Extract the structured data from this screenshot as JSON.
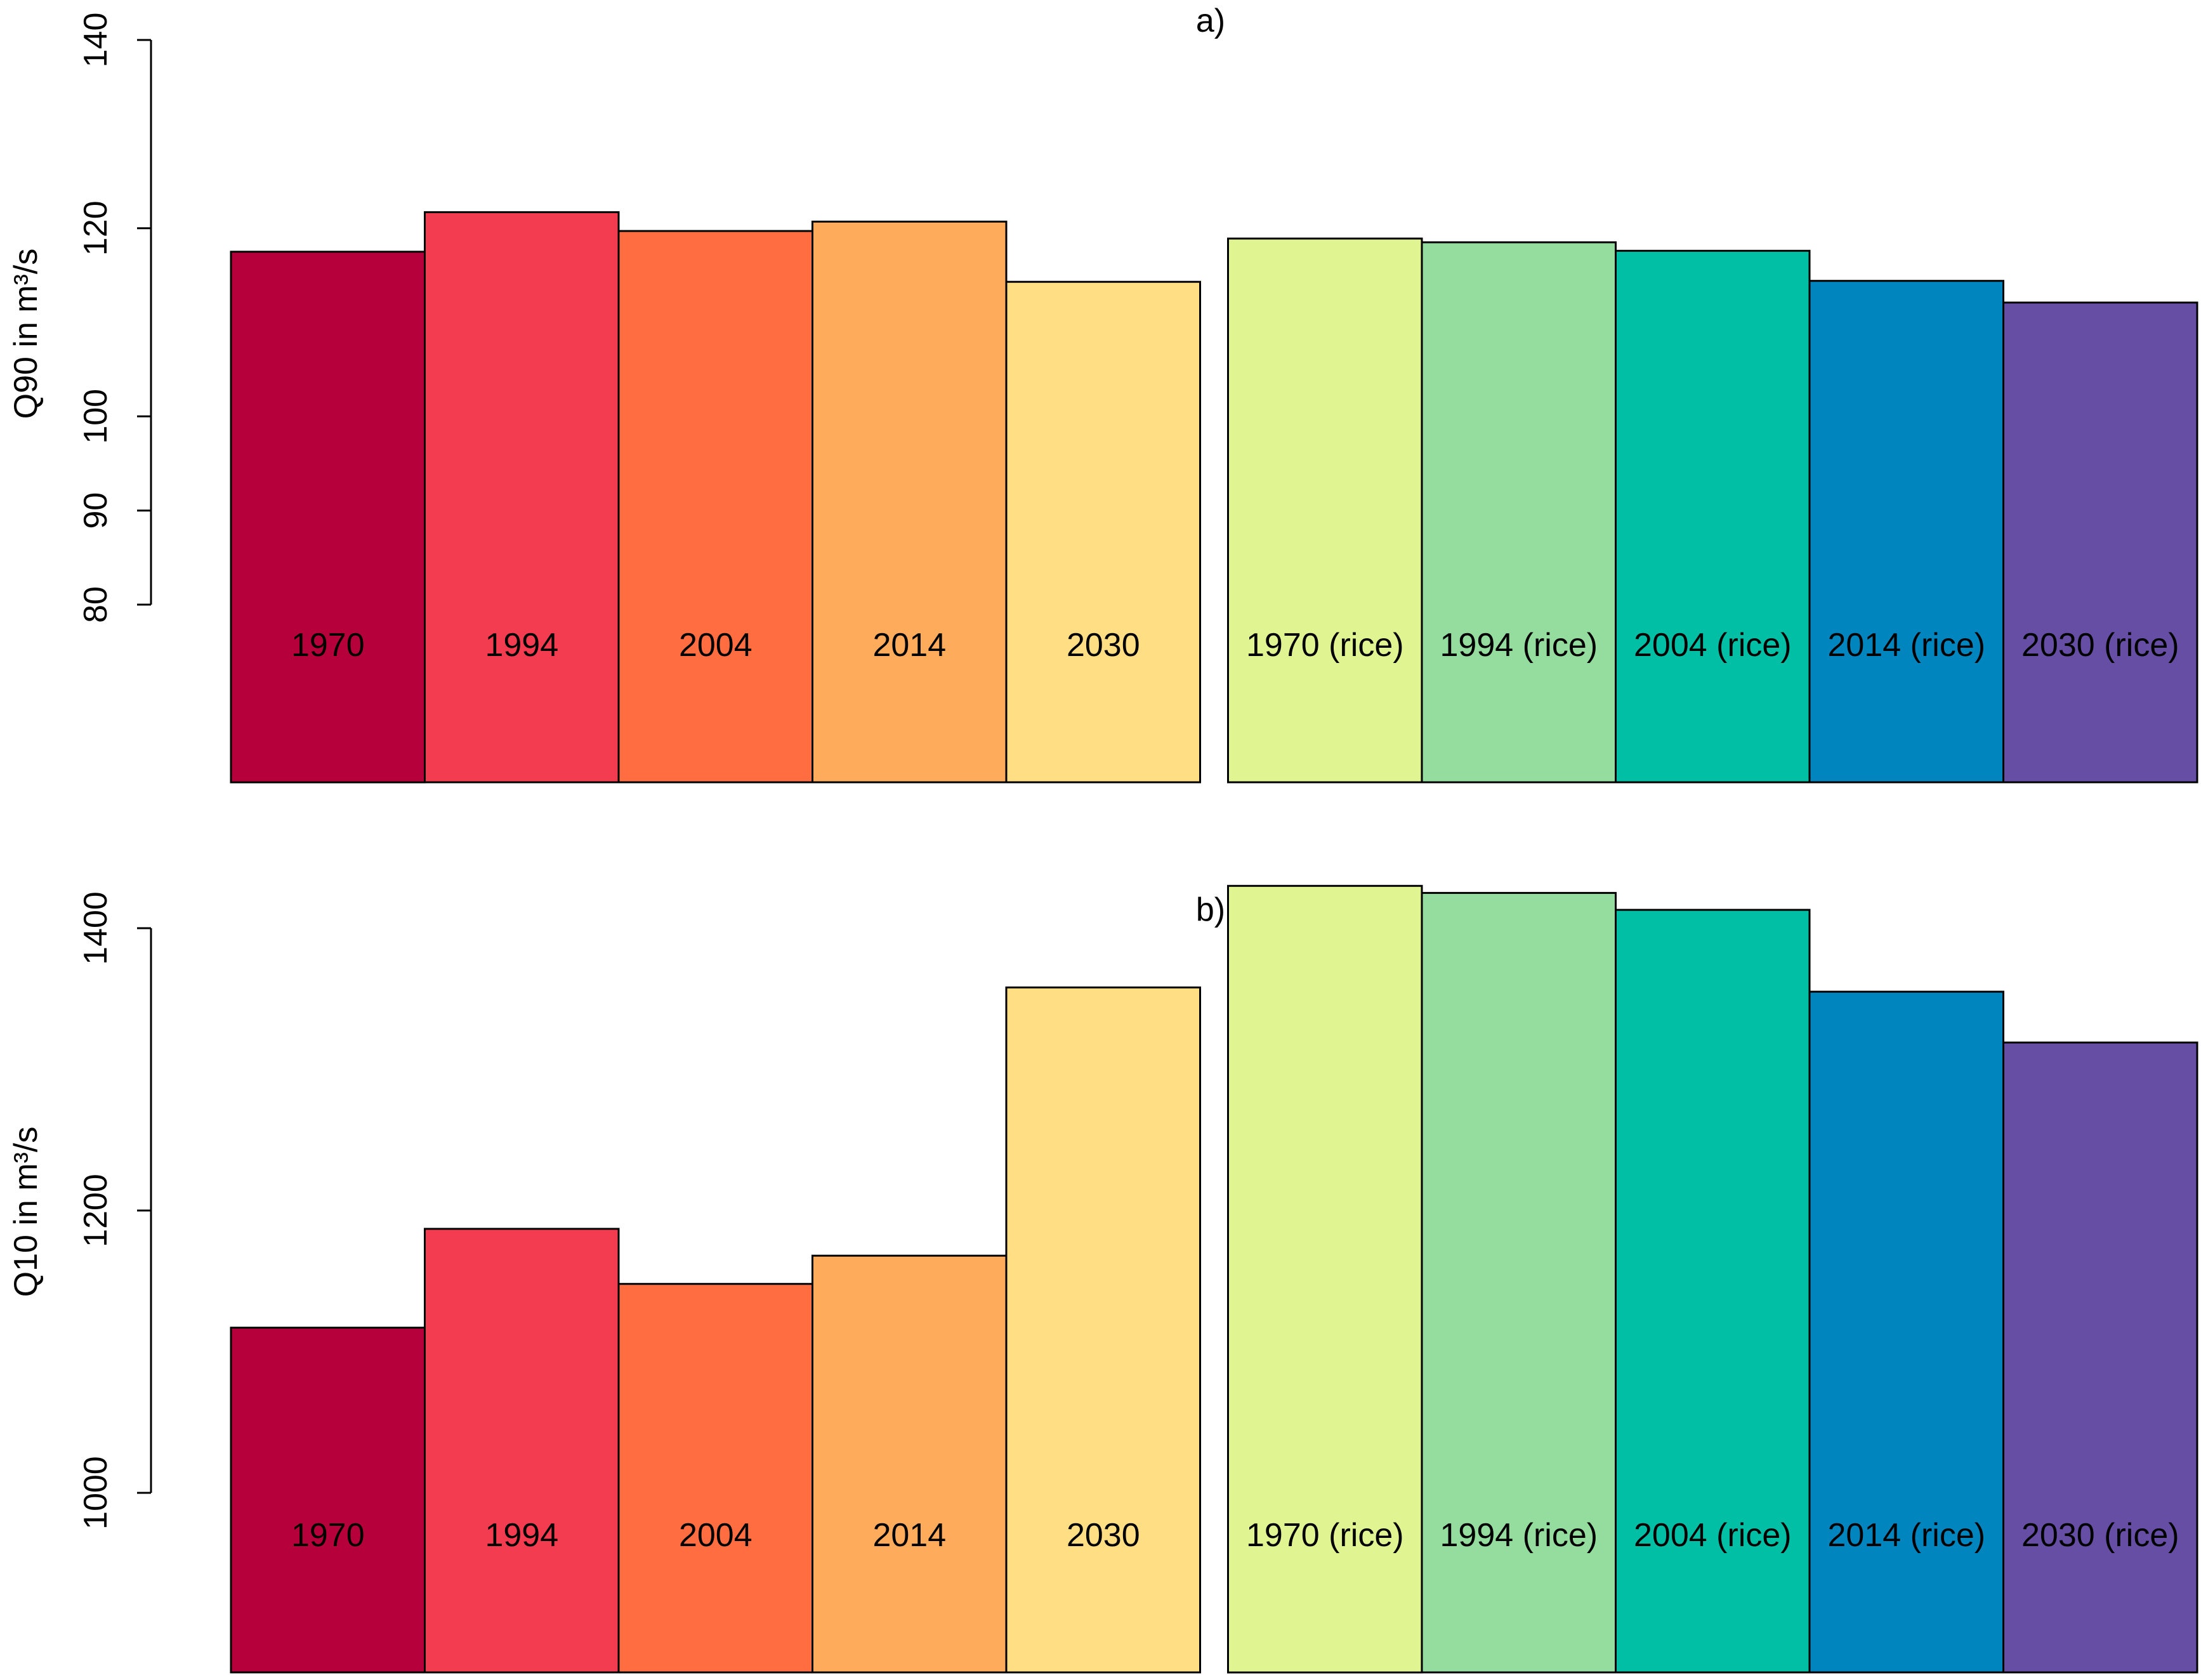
{
  "chart_data": [
    {
      "type": "bar",
      "title": "a)",
      "ylabel": "Q90 in m³/s",
      "xlabel": "",
      "ylim": [
        80,
        140
      ],
      "yticks": [
        80,
        90,
        100,
        120,
        140
      ],
      "grid": false,
      "categories": [
        "1970",
        "1994",
        "2004",
        "2014",
        "2030",
        "1970 (rice)",
        "1994 (rice)",
        "2004 (rice)",
        "2014 (rice)",
        "2030 (rice)"
      ],
      "values": [
        117.5,
        121.7,
        119.7,
        120.7,
        114.3,
        118.9,
        118.5,
        117.6,
        114.4,
        112.1
      ],
      "group_sizes": [
        5,
        5
      ],
      "colors": [
        "#B5003C",
        "#F43C50",
        "#FF6D40",
        "#FFAB5C",
        "#FFDE84",
        "#E0F592",
        "#95DD9F",
        "#00BFA5",
        "#0085BE",
        "#654EA3"
      ]
    },
    {
      "type": "bar",
      "title": "b)",
      "ylabel": "Q10 in m³/s",
      "xlabel": "",
      "ylim": [
        1000,
        1400
      ],
      "yticks": [
        1000,
        1200,
        1400
      ],
      "grid": false,
      "categories": [
        "1970",
        "1994",
        "2004",
        "2014",
        "2030",
        "1970 (rice)",
        "1994 (rice)",
        "2004 (rice)",
        "2014 (rice)",
        "2030 (rice)"
      ],
      "values": [
        1117,
        1187,
        1148,
        1168,
        1358,
        1430,
        1425,
        1413,
        1355,
        1319
      ],
      "group_sizes": [
        5,
        5
      ],
      "colors": [
        "#B5003C",
        "#F43C50",
        "#FF6D40",
        "#FFAB5C",
        "#FFDE84",
        "#E0F592",
        "#95DD9F",
        "#00BFA5",
        "#0085BE",
        "#654EA3"
      ]
    }
  ]
}
